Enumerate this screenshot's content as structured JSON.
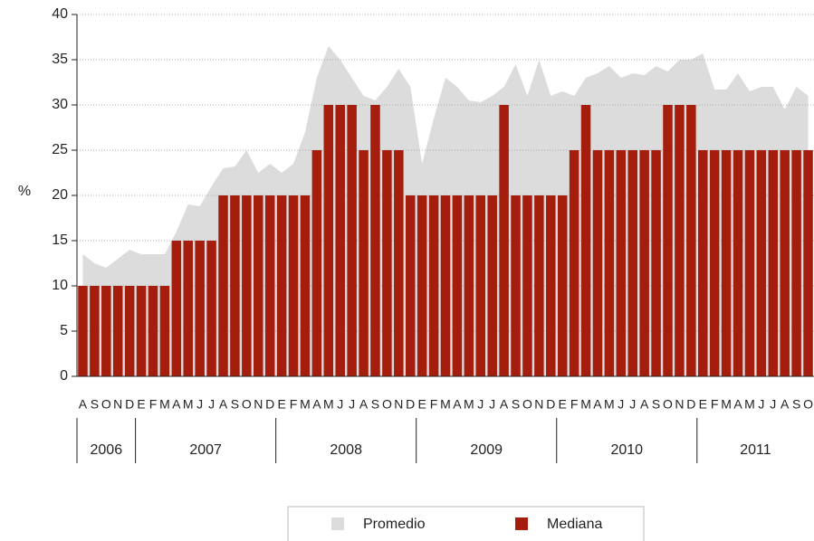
{
  "chart_data": {
    "type": "bar",
    "y_label": "%",
    "categories": [
      "A",
      "S",
      "O",
      "N",
      "D",
      "E",
      "F",
      "M",
      "A",
      "M",
      "J",
      "J",
      "A",
      "S",
      "O",
      "N",
      "D",
      "E",
      "F",
      "M",
      "A",
      "M",
      "J",
      "J",
      "A",
      "S",
      "O",
      "N",
      "D",
      "E",
      "F",
      "M",
      "A",
      "M",
      "J",
      "J",
      "A",
      "S",
      "O",
      "N",
      "D",
      "E",
      "F",
      "M",
      "A",
      "M",
      "J",
      "J",
      "A",
      "S",
      "O",
      "N",
      "D",
      "E",
      "F",
      "M",
      "A",
      "M",
      "J",
      "J",
      "A",
      "S",
      "O"
    ],
    "years": [
      "2006",
      "2007",
      "2008",
      "2009",
      "2010",
      "2011"
    ],
    "series": [
      {
        "name": "Promedio",
        "type": "area",
        "color": "#dcdcdc",
        "values": [
          13.5,
          12.5,
          12,
          13,
          14,
          13.5,
          13.5,
          13.5,
          16,
          19,
          18.8,
          21,
          23,
          23.2,
          25,
          22.5,
          23.5,
          22.5,
          23.5,
          27,
          33,
          36.5,
          35,
          33,
          31,
          30.5,
          32,
          34,
          32,
          23.5,
          28.5,
          33,
          32,
          30.5,
          30.3,
          31,
          32,
          34.5,
          31,
          35,
          31,
          31.5,
          31,
          33,
          33.5,
          34.3,
          33,
          33.5,
          33.3,
          34.3,
          33.7,
          35,
          35,
          35.7,
          31.7,
          31.7,
          33.5,
          31.5,
          32,
          32,
          29.5,
          32,
          31
        ]
      },
      {
        "name": "Mediana",
        "type": "bar",
        "color": "#a51d0c",
        "values": [
          10,
          10,
          10,
          10,
          10,
          10,
          10,
          10,
          15,
          15,
          15,
          15,
          20,
          20,
          20,
          20,
          20,
          20,
          20,
          20,
          25,
          30,
          30,
          30,
          25,
          30,
          25,
          25,
          20,
          20,
          20,
          20,
          20,
          20,
          20,
          20,
          30,
          20,
          20,
          20,
          20,
          20,
          25,
          30,
          25,
          25,
          25,
          25,
          25,
          25,
          30,
          30,
          30,
          25,
          25,
          25,
          25,
          25,
          25,
          25,
          25,
          25,
          25
        ]
      }
    ],
    "ylim": [
      0,
      40
    ],
    "yticks": [
      0,
      5,
      10,
      15,
      20,
      25,
      30,
      35,
      40
    ],
    "grid": true
  }
}
